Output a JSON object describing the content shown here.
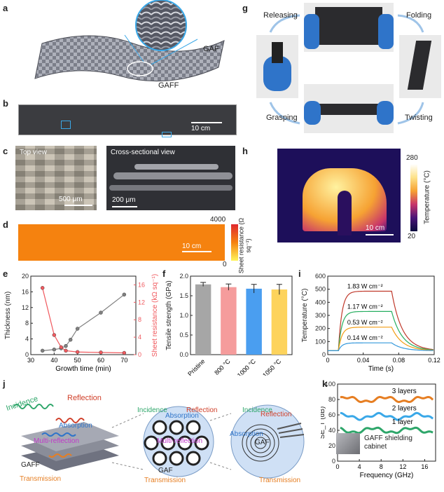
{
  "panel_labels": [
    "a",
    "b",
    "c",
    "d",
    "e",
    "f",
    "g",
    "h",
    "i",
    "j",
    "k"
  ],
  "a": {
    "gaf": "GAF",
    "gaff": "GAFF"
  },
  "b": {
    "scale": "10 cm"
  },
  "c": {
    "top_view": "Top view",
    "top_scale": "500 μm",
    "cross_view": "Cross-sectional view",
    "cross_scale": "200 μm"
  },
  "d": {
    "scale": "10 cm",
    "cbar_max": "4000",
    "cbar_min": "0",
    "cbar_label": "Sheet resistance (Ω sq⁻¹)"
  },
  "g": {
    "releasing": "Releasing",
    "folding": "Folding",
    "grasping": "Grasping",
    "twisting": "Twisting"
  },
  "h": {
    "scale": "10 cm",
    "cbar_max": "280",
    "cbar_min": "20",
    "cbar_label": "Temperature (°C)"
  },
  "j": {
    "incidence": "Incidence",
    "reflection": "Reflection",
    "absorption": "Absorption",
    "multi_reflection": "Multi-reflection",
    "gaff": "GAFF",
    "transmission": "Transmission",
    "gaf": "GAF"
  },
  "k": {
    "inset_label": "GAFF shielding cabinet"
  },
  "chart_data": [
    {
      "panel": "e",
      "type": "line",
      "xlabel": "Growth time (min)",
      "ylabel": "Thickness (nm)",
      "y2label": "Sheet resistance (kΩ sq⁻¹)",
      "xlim": [
        30,
        75
      ],
      "ylim": [
        0,
        20
      ],
      "y2lim": [
        0,
        18
      ],
      "xticks": [
        "30",
        "40",
        "50",
        "60",
        "70"
      ],
      "yticks": [
        "0",
        "4",
        "8",
        "12",
        "16",
        "20"
      ],
      "y2ticks": [
        "0",
        "4",
        "8",
        "12",
        "16"
      ],
      "series": [
        {
          "axis": "left",
          "color": "#808080",
          "x": [
            35,
            40,
            43,
            45,
            47,
            50,
            60,
            70
          ],
          "y": [
            1.0,
            1.3,
            1.6,
            2.2,
            3.8,
            6.6,
            10.7,
            15.3
          ]
        },
        {
          "axis": "right",
          "color": "#f0595e",
          "x": [
            35,
            40,
            43,
            45,
            50,
            60,
            70
          ],
          "y": [
            15.3,
            4.5,
            1.7,
            0.9,
            0.6,
            0.5,
            0.4
          ]
        }
      ]
    },
    {
      "panel": "f",
      "type": "bar",
      "ylabel": "Tensile strength (GPa)",
      "ylim": [
        0,
        2.0
      ],
      "yticks": [
        "0.0",
        "0.5",
        "1.0",
        "1.5",
        "2.0"
      ],
      "categories": [
        "Pristine",
        "800 °C",
        "1000 °C",
        "1050 °C"
      ],
      "values": [
        1.79,
        1.72,
        1.68,
        1.66
      ],
      "errors": [
        0.05,
        0.08,
        0.11,
        0.13
      ],
      "colors": [
        "#a6a6a6",
        "#f59c9c",
        "#4a9ef0",
        "#fdd35c"
      ]
    },
    {
      "panel": "i",
      "type": "line",
      "xlabel": "Time (s)",
      "ylabel": "Temperature (°C)",
      "xlim": [
        0,
        0.12
      ],
      "ylim": [
        0,
        600
      ],
      "xticks": [
        "0",
        "0.04",
        "0.08",
        "0.12"
      ],
      "yticks": [
        "0",
        "100",
        "200",
        "300",
        "400",
        "500",
        "600"
      ],
      "series": [
        {
          "name": "1.83 W cm⁻²",
          "color": "#c0392b",
          "plateau": 485
        },
        {
          "name": "1.17 W cm⁻²",
          "color": "#27ae60",
          "plateau": 330
        },
        {
          "name": "0.53 W cm⁻²",
          "color": "#f39c12",
          "plateau": 210
        },
        {
          "name": "0.14 W cm⁻²",
          "color": "#3498db",
          "plateau": 90
        }
      ]
    },
    {
      "panel": "k",
      "type": "line",
      "xlabel": "Frequency (GHz)",
      "ylabel": "SE_T (dB)",
      "xlim": [
        0,
        18
      ],
      "ylim": [
        0,
        100
      ],
      "xticks": [
        "0",
        "4",
        "8",
        "12",
        "16"
      ],
      "yticks": [
        "0",
        "20",
        "40",
        "60",
        "80",
        "100"
      ],
      "series": [
        {
          "name": "3 layers",
          "color": "#e67e22",
          "level": 80
        },
        {
          "name": "2 layers",
          "color": "#3aa8e8",
          "level": 58
        },
        {
          "name": "1 layer",
          "color": "#2ea66a",
          "level": 40
        }
      ]
    }
  ]
}
